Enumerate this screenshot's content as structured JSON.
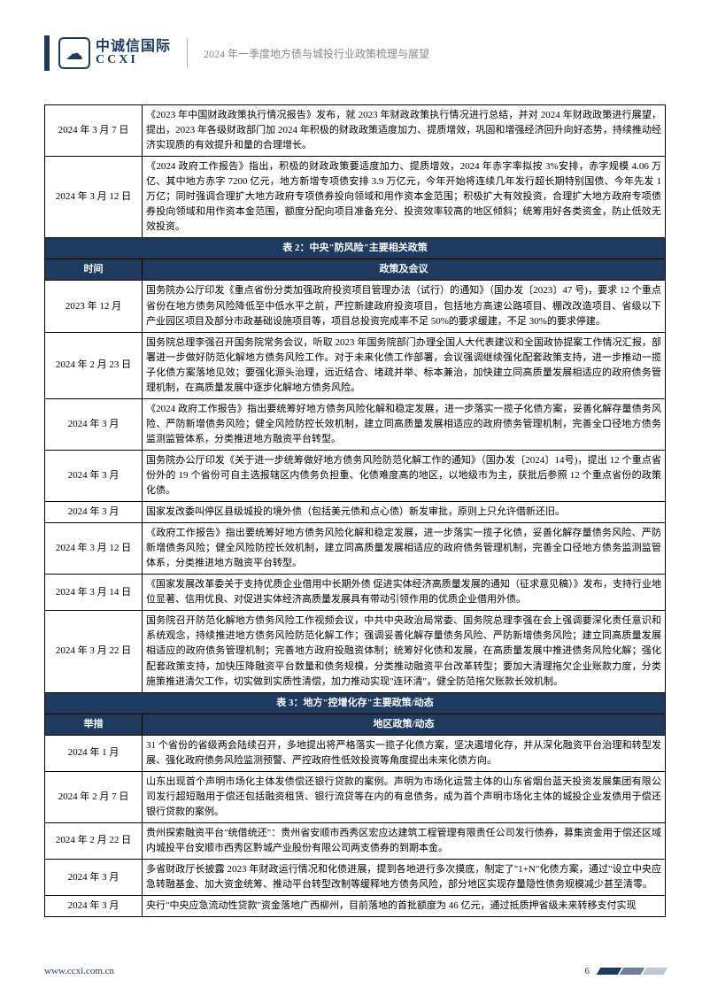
{
  "header": {
    "logo_cn": "中诚信国际",
    "logo_en": "CCXI",
    "title": "2024 年一季度地方债与城投行业政策梳理与展望"
  },
  "table1_rows": [
    {
      "date": "2024 年 3 月 7 日",
      "content": "《2023 年中国财政政策执行情况报告》发布，就 2023 年财政政策执行情况进行总结，并对 2024 年财政政策进行展望，提出，2023 年各级财政部门加 2024 年积极的财政政策适度加力、提质增效，巩固和增强经济回升向好态势，持续推动经济实现质的有效提升和量的合理增长。"
    },
    {
      "date": "2024 年 3 月 12 日",
      "content": "《2024 政府工作报告》指出，积极的财政政策要适度加力、提质增效，2024 年赤字率拟按 3%安排，赤字规模 4.06 万亿、其中地方赤字 7200 亿元，地方新增专项债安排 3.9 万亿元，今年开始将连续几年发行超长期特别国债、今年先发 1 万亿；同时强调合理扩大地方政府专项债券投向领域和用作资本金范围；积极扩大有效投资，合理扩大地方政府专项债券投向领域和用作资本金范围，额度分配向项目准备充分、投资效率较高的地区倾斜；统筹用好各类资金，防止低效无效投资。"
    }
  ],
  "section2": {
    "title": "表 2：中央\"防风险\"主要相关政策",
    "col1": "时间",
    "col2": "政策及会议"
  },
  "table2_rows": [
    {
      "date": "2023 年 12 月",
      "content": "国务院办公厅印发《重点省份分类加强政府投资项目管理办法（试行）的通知》（国办发〔2023〕47 号)，要求 12 个重点省份在地方债务风险降低至中低水平之前，严控新建政府投资项目，包括地方高速公路项目、棚改改造项目、省级以下产业园区项目及部分市政基础设施项目等，项目总投资完成率不足 50%的要求缓建，不足 30%的要求停建。"
    },
    {
      "date": "2024 年 2 月 23 日",
      "content": "国务院总理李强召开国务院常务会议，听取 2023 年国务院部门办理全国人大代表建议和全国政协提案工作情况汇报，部署进一步做好防范化解地方债务风险工作。对于未来化债工作部署，会议强调继续强化配套政策支持，进一步推动一揽子化债方案落地见效；要强化源头治理，远近结合、堵疏并举、标本兼治，加快建立同高质量发展相适应的政府债务管理机制，在高质量发展中逐步化解地方债务风险。"
    },
    {
      "date": "2024 年 3 月",
      "content": "《2024 政府工作报告》指出要统筹好地方债务风险化解和稳定发展，进一步落实一揽子化债方案，妥善化解存量债务风险、严防新增债务风险；健全风险防控长效机制，建立同高质量发展相适应的政府债务管理机制，完善全口径地方债务监测监管体系，分类推进地方融资平台转型。"
    },
    {
      "date": "2024 年 3 月",
      "content": "国务院办公厅印发《关于进一步统筹做好地方债务风险防范化解工作的通知》（国办发〔2024〕14号)，提出 12 个重点省份外的 19 个省份可自主选报辖区内债务负担重、化债难度高的地区，以地级市为主，获批后参照 12 个重点省份的政策化债。"
    },
    {
      "date": "2024 年 3 月",
      "content": "国家发改委叫停区县级城投的境外债（包括美元债和点心债）新发审批，原则上只允许借新还旧。"
    },
    {
      "date": "2024 年 3 月 12 日",
      "content": "《政府工作报告》指出要统筹好地方债务风险化解和稳定发展，进一步落实一揽子化债，妥善化解存量债务风险、严防新增债务风险；健全风险防控长效机制，建立同高质量发展相适应的政府债务管理机制，完善全口径地方债务监测监管体系，分类推进地方融资平台转型。"
    },
    {
      "date": "2024 年 3 月 14 日",
      "content": "《国家发展改革委关于支持优质企业借用中长期外债  促进实体经济高质量发展的通知（征求意见稿）》发布，支持行业地位显著、信用优良、对促进实体经济高质量发展具有带动引领作用的优质企业借用外债。"
    },
    {
      "date": "2024 年 3 月 22 日",
      "content": "国务院召开防范化解地方债务风险工作视频会议，中共中央政治局常委、国务院总理李强在会上强调要深化责任意识和系统观念，持续推进地方债务风险防范化解工作；强调妥善化解存量债务风险、严防新增债务风险；建立同高质量发展相适应的政府债务管理机制；完善地方政府投融资体制；统筹好化债和发展，在高质量发展中推进债务风险化解；强化配套政策支持，加快压降融资平台数量和债务规模，分类推动融资平台改革转型；要加大清理拖欠企业账款力度，分类施策推进清欠工作，切实做到实质性清偿，加力推动实现\"连环清\"，健全防范拖欠账款长效机制。"
    }
  ],
  "section3": {
    "title": "表 3：地方\"控增化存\"主要政策/动态",
    "col1": "举措",
    "col2": "地区政策/动态"
  },
  "table3_rows": [
    {
      "date": "2024 年 1 月",
      "content": "31 个省份的省级两会陆续召开，多地提出将严格落实一揽子化债方案，坚决遏增化存，并从深化融资平台治理和转型发展、强化政府债务风险监测预警、严控政府性低效投资等角度提出未来化债方向。"
    },
    {
      "date": "2024 年 2 月 7 日",
      "content": "山东出现首个声明市场化主体发债偿还银行贷款的案例。声明为市场化运营主体的山东省烟台蓝天投资发展集团有限公司发行超短融用于偿还包括融资租赁、银行流贷等在内的有息债务，成为首个声明市场化主体的城投企业发债用于偿还银行贷款的案例。"
    },
    {
      "date": "2024 年 2 月 22 日",
      "content": "贵州探索融资平台\"统借统还\"：贵州省安顺市西秀区宏应达建筑工程管理有限责任公司发行债券，募集资金用于偿还区域内城投平台安顺市西秀区黔城产业股份有限公司两支债券的到期本金。"
    },
    {
      "date": "2024 年 3 月",
      "content": "多省财政厅长披露 2023 年财政运行情况和化债进展，提到各地进行多次摸底，制定了\"1+N\"化债方案，通过\"设立中央应急转融基金、加大资金统筹、推动平台转型改制等缓释地方债务风险，部分地区实现存量隐性债务规模减少甚至清零。"
    },
    {
      "date": "2024 年 3 月",
      "content": "央行\"中央应急流动性贷款\"资金落地广西柳州，目前落地的首批额度为 46 亿元，通过抵质押省级未来转移支付实现"
    }
  ],
  "footer": {
    "url": "www.ccxi.com.cn",
    "page": "6"
  }
}
